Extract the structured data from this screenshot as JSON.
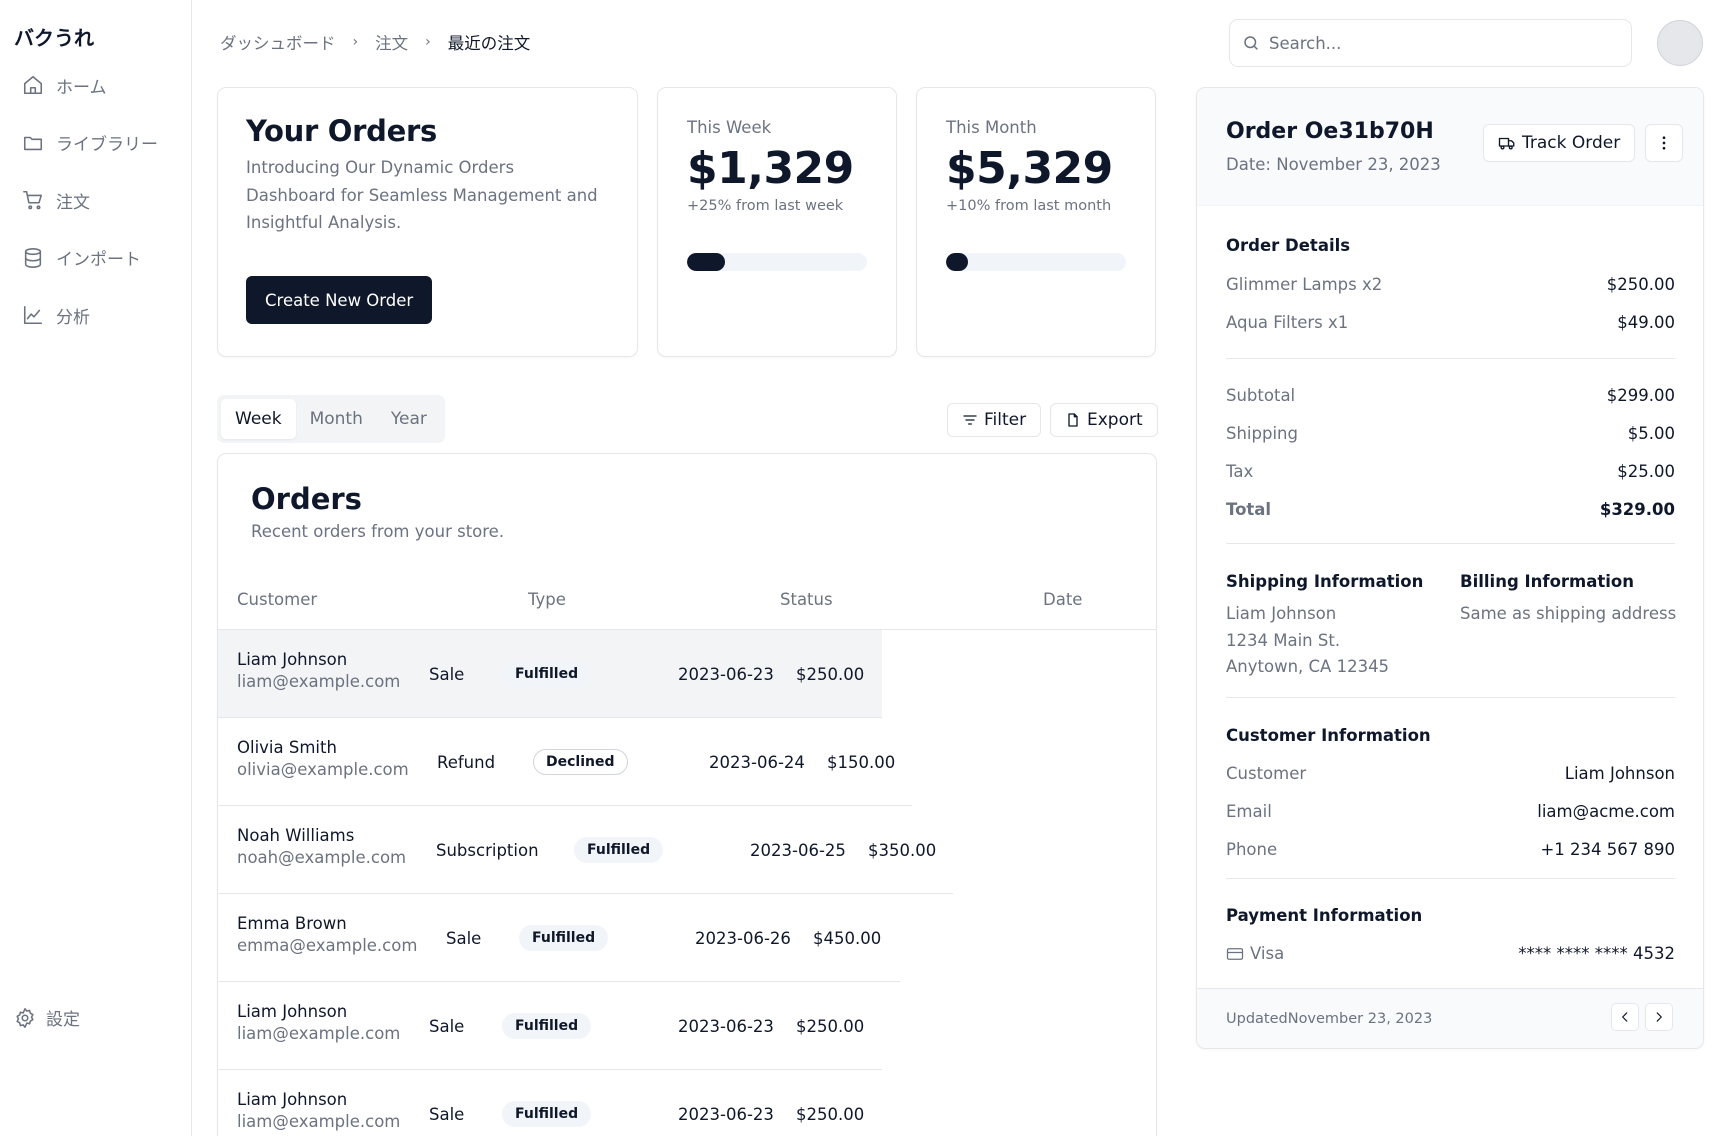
{
  "sidebar": {
    "brand": "バクうれ",
    "items": [
      {
        "label": "ホーム",
        "icon": "home-icon"
      },
      {
        "label": "ライブラリー",
        "icon": "folder-icon"
      },
      {
        "label": "注文",
        "icon": "cart-icon"
      },
      {
        "label": "インポート",
        "icon": "database-icon"
      },
      {
        "label": "分析",
        "icon": "chart-icon"
      }
    ],
    "settings_label": "設定"
  },
  "breadcrumb": [
    "ダッシュボード",
    "注文",
    "最近の注文"
  ],
  "search": {
    "placeholder": "Search...",
    "value": ""
  },
  "intro": {
    "title": "Your Orders",
    "description": "Introducing Our Dynamic Orders Dashboard for Seamless Management and Insightful Analysis.",
    "button": "Create New Order"
  },
  "stats": {
    "week": {
      "label": "This Week",
      "value": "$1,329",
      "change": "+25% from last week",
      "progress": 0.21
    },
    "month": {
      "label": "This Month",
      "value": "$5,329",
      "change": "+10% from last month",
      "progress": 0.12
    }
  },
  "tabs": [
    "Week",
    "Month",
    "Year"
  ],
  "actions": {
    "filter": "Filter",
    "export": "Export"
  },
  "orders": {
    "title": "Orders",
    "subtitle": "Recent orders from your store.",
    "columns": [
      "Customer",
      "Type",
      "Status",
      "Date"
    ],
    "rows": [
      {
        "name": "Liam Johnson",
        "email": "liam@example.com",
        "type": "Sale",
        "status": "Fulfilled",
        "date": "2023-06-23",
        "amount": "$250.00"
      },
      {
        "name": "Olivia Smith",
        "email": "olivia@example.com",
        "type": "Refund",
        "status": "Declined",
        "date": "2023-06-24",
        "amount": "$150.00"
      },
      {
        "name": "Noah Williams",
        "email": "noah@example.com",
        "type": "Subscription",
        "status": "Fulfilled",
        "date": "2023-06-25",
        "amount": "$350.00"
      },
      {
        "name": "Emma Brown",
        "email": "emma@example.com",
        "type": "Sale",
        "status": "Fulfilled",
        "date": "2023-06-26",
        "amount": "$450.00"
      },
      {
        "name": "Liam Johnson",
        "email": "liam@example.com",
        "type": "Sale",
        "status": "Fulfilled",
        "date": "2023-06-23",
        "amount": "$250.00"
      },
      {
        "name": "Liam Johnson",
        "email": "liam@example.com",
        "type": "Sale",
        "status": "Fulfilled",
        "date": "2023-06-23",
        "amount": "$250.00"
      }
    ]
  },
  "detail": {
    "title": "Order Oe31b70H",
    "date": "Date: November 23, 2023",
    "track_button": "Track Order",
    "order_details_title": "Order Details",
    "items": [
      {
        "label": "Glimmer Lamps x2",
        "value": "$250.00"
      },
      {
        "label": "Aqua Filters x1",
        "value": "$49.00"
      }
    ],
    "totals": [
      {
        "label": "Subtotal",
        "value": "$299.00"
      },
      {
        "label": "Shipping",
        "value": "$5.00"
      },
      {
        "label": "Tax",
        "value": "$25.00"
      },
      {
        "label": "Total",
        "value": "$329.00"
      }
    ],
    "shipping_title": "Shipping Information",
    "shipping_lines": [
      "Liam Johnson",
      "1234 Main St.",
      "Anytown, CA 12345"
    ],
    "billing_title": "Billing Information",
    "billing_text": "Same as shipping address",
    "customer_title": "Customer Information",
    "customer": [
      {
        "label": "Customer",
        "value": "Liam Johnson"
      },
      {
        "label": "Email",
        "value": "liam@acme.com"
      },
      {
        "label": "Phone",
        "value": "+1 234 567 890"
      }
    ],
    "payment_title": "Payment Information",
    "payment_method": "Visa",
    "payment_card": "**** **** **** 4532",
    "updated": "UpdatedNovember 23, 2023"
  }
}
